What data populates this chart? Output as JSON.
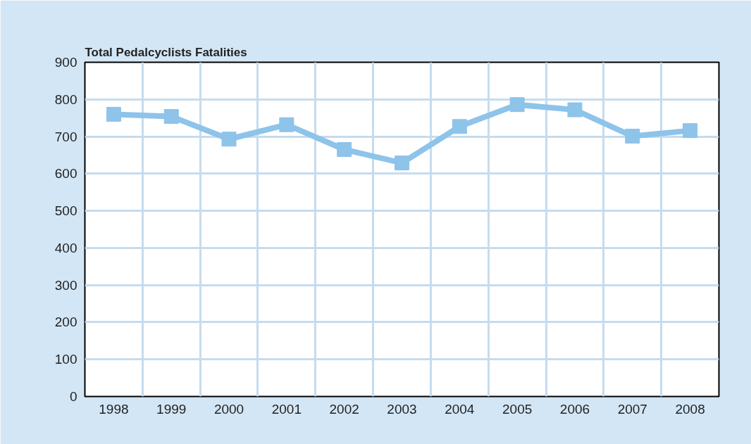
{
  "chart_data": {
    "type": "line",
    "title": "Total Pedalcyclists Fatalities",
    "categories": [
      "1998",
      "1999",
      "2000",
      "2001",
      "2002",
      "2003",
      "2004",
      "2005",
      "2006",
      "2007",
      "2008"
    ],
    "series": [
      {
        "color": "#8ec3ea",
        "values": [
          760,
          754,
          693,
          732,
          665,
          629,
          727,
          786,
          772,
          701,
          716
        ]
      }
    ],
    "ylim": [
      0,
      900
    ],
    "yticks": [
      0,
      100,
      200,
      300,
      400,
      500,
      600,
      700,
      800,
      900
    ],
    "grid": true,
    "marker": "square",
    "line_style": "solid"
  }
}
